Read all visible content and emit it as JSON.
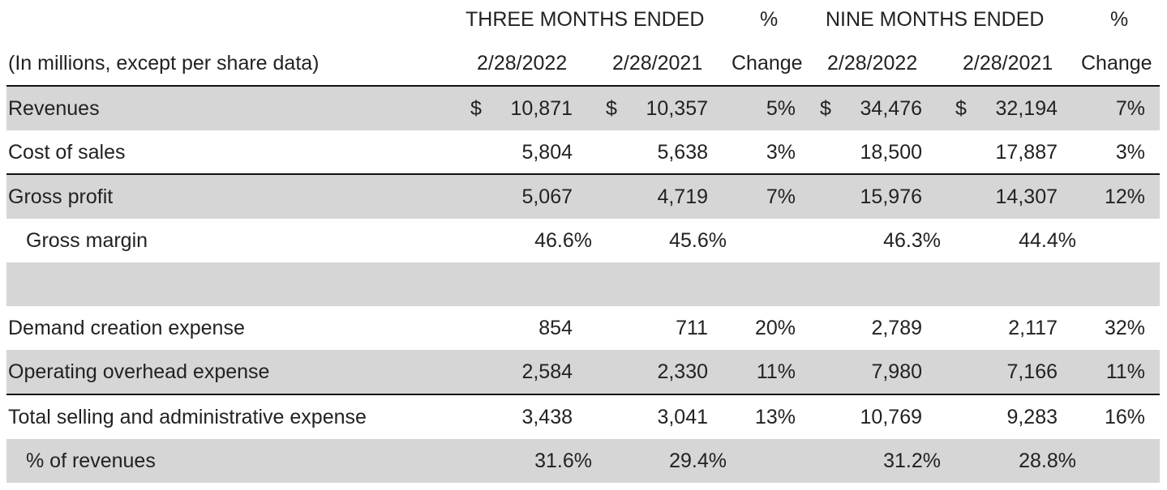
{
  "header": {
    "three_months": "THREE MONTHS ENDED",
    "pct_top_1": "%",
    "nine_months": "NINE MONTHS ENDED",
    "pct_top_2": "%",
    "units": "(In millions, except per share data)",
    "col_q_2022": "2/28/2022",
    "col_q_2021": "2/28/2021",
    "change_1": "Change",
    "col_n_2022": "2/28/2022",
    "col_n_2021": "2/28/2021",
    "change_2": "Change"
  },
  "currency_symbol": "$",
  "rows": [
    {
      "label": "Revenues",
      "q2022": "10,871",
      "q2021": "10,357",
      "qchg": "5%",
      "n2022": "34,476",
      "n2021": "32,194",
      "nchg": "7%"
    },
    {
      "label": "Cost of sales",
      "q2022": "5,804",
      "q2021": "5,638",
      "qchg": "3%",
      "n2022": "18,500",
      "n2021": "17,887",
      "nchg": "3%"
    },
    {
      "label": "Gross profit",
      "q2022": "5,067",
      "q2021": "4,719",
      "qchg": "7%",
      "n2022": "15,976",
      "n2021": "14,307",
      "nchg": "12%"
    },
    {
      "label": "Gross margin",
      "q2022": "46.6%",
      "q2021": "45.6%",
      "qchg": "",
      "n2022": "46.3%",
      "n2021": "44.4%",
      "nchg": ""
    },
    {
      "label": "",
      "q2022": "",
      "q2021": "",
      "qchg": "",
      "n2022": "",
      "n2021": "",
      "nchg": ""
    },
    {
      "label": "Demand creation expense",
      "q2022": "854",
      "q2021": "711",
      "qchg": "20%",
      "n2022": "2,789",
      "n2021": "2,117",
      "nchg": "32%"
    },
    {
      "label": "Operating overhead expense",
      "q2022": "2,584",
      "q2021": "2,330",
      "qchg": "11%",
      "n2022": "7,980",
      "n2021": "7,166",
      "nchg": "11%"
    },
    {
      "label": "Total selling and administrative expense",
      "q2022": "3,438",
      "q2021": "3,041",
      "qchg": "13%",
      "n2022": "10,769",
      "n2021": "9,283",
      "nchg": "16%"
    },
    {
      "label": "% of revenues",
      "q2022": "31.6%",
      "q2021": "29.4%",
      "qchg": "",
      "n2022": "31.2%",
      "n2021": "28.8%",
      "nchg": ""
    }
  ]
}
